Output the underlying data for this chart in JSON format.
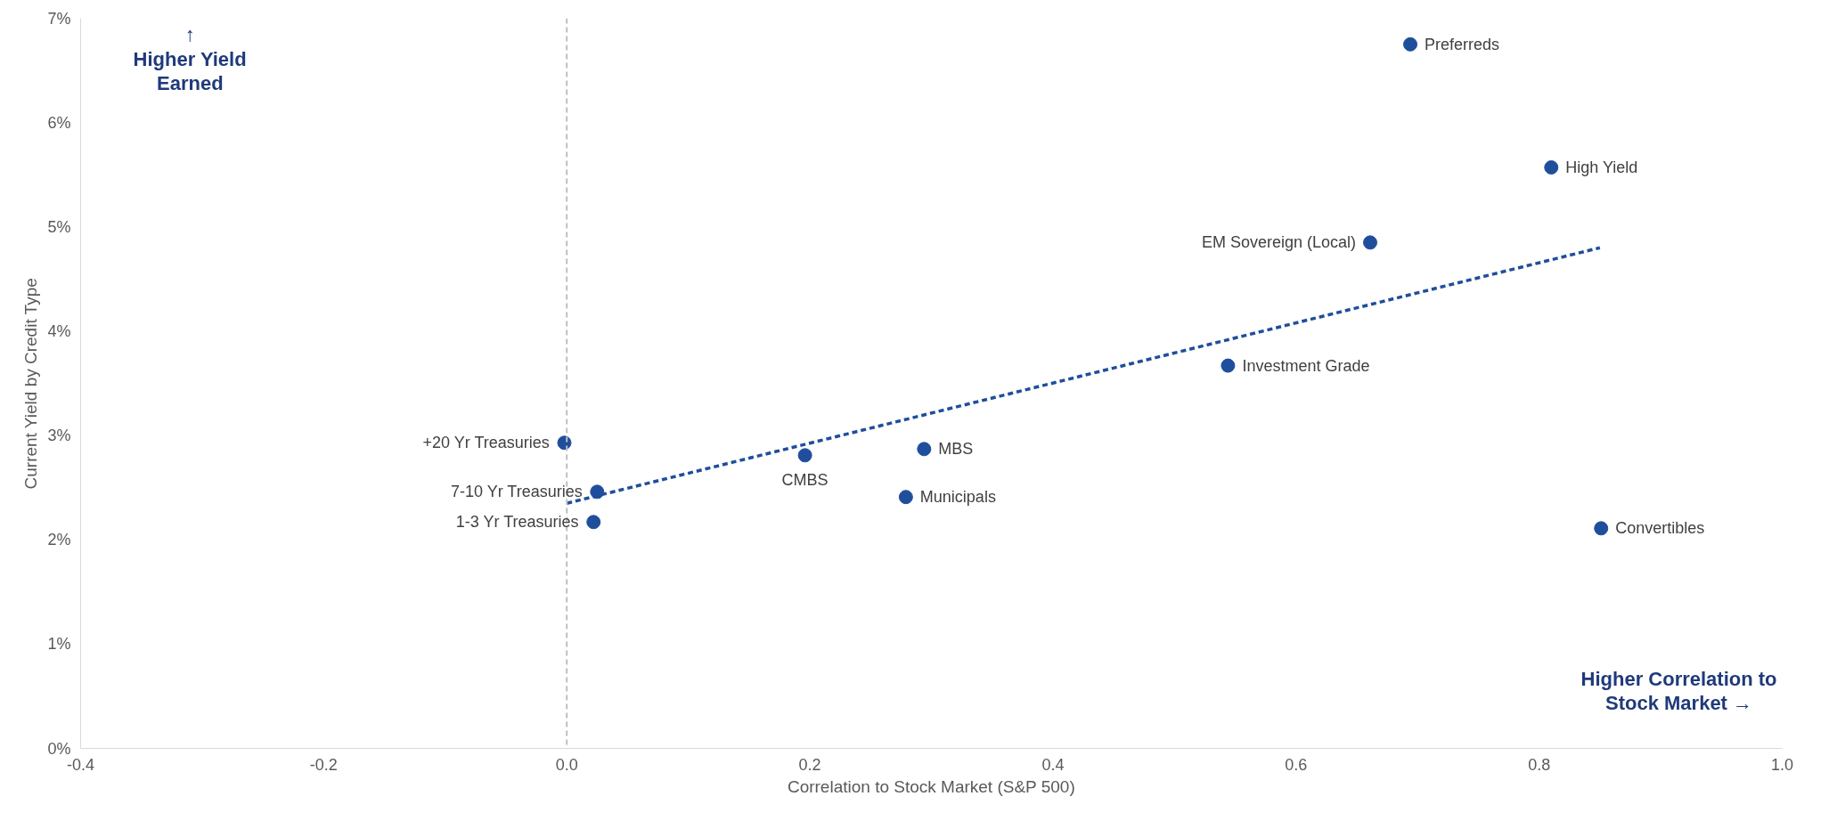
{
  "chart_data": {
    "type": "scatter",
    "xlabel": "Correlation to Stock Market (S&P 500)",
    "ylabel": "Current Yield by Credit Type",
    "xlim": [
      -0.4,
      1.0
    ],
    "ylim": [
      0,
      7
    ],
    "xticks": [
      {
        "value": -0.4,
        "label": "-0.4"
      },
      {
        "value": -0.2,
        "label": "-0.2"
      },
      {
        "value": 0,
        "label": "0.0"
      },
      {
        "value": 0.2,
        "label": "0.2"
      },
      {
        "value": 0.4,
        "label": "0.4"
      },
      {
        "value": 0.6,
        "label": "0.6"
      },
      {
        "value": 0.8,
        "label": "0.8"
      },
      {
        "value": 1.0,
        "label": "1.0"
      }
    ],
    "yticks": [
      {
        "value": 0,
        "label": "0%"
      },
      {
        "value": 1,
        "label": "1%"
      },
      {
        "value": 2,
        "label": "2%"
      },
      {
        "value": 3,
        "label": "3%"
      },
      {
        "value": 4,
        "label": "4%"
      },
      {
        "value": 5,
        "label": "5%"
      },
      {
        "value": 6,
        "label": "6%"
      },
      {
        "value": 7,
        "label": "7%"
      }
    ],
    "grid": false,
    "series": [
      {
        "marker": "circle",
        "color": "#1f4e9c",
        "x": [
          0.694,
          0.81,
          0.661,
          0.544,
          -0.002,
          0.025,
          0.022,
          0.196,
          0.294,
          0.279,
          0.851
        ],
        "values": [
          6.75,
          5.57,
          4.85,
          3.67,
          2.93,
          2.46,
          2.17,
          2.81,
          2.87,
          2.41,
          2.11
        ]
      },
      {
        "type": "line",
        "color": "#1f4e9c",
        "line_style": "dashed",
        "x": [
          0,
          0.85
        ],
        "values": [
          2.35,
          4.8
        ]
      }
    ],
    "ref_lines": [
      {
        "axis": "x",
        "value": 0,
        "color": "#bfbfbf",
        "line_style": "dashed"
      }
    ],
    "annotations": [
      {
        "text": "Preferreds",
        "x": 0.694,
        "y": 6.75
      },
      {
        "text": "High Yield",
        "x": 0.81,
        "y": 5.57
      },
      {
        "text": "EM Sovereign (Local)",
        "x": 0.661,
        "y": 4.85
      },
      {
        "text": "Investment Grade",
        "x": 0.544,
        "y": 3.67
      },
      {
        "text": "+20 Yr Treasuries",
        "x": -0.002,
        "y": 2.93
      },
      {
        "text": "7-10 Yr Treasuries",
        "x": 0.025,
        "y": 2.46
      },
      {
        "text": "1-3 Yr Treasuries",
        "x": 0.022,
        "y": 2.17
      },
      {
        "text": "CMBS",
        "x": 0.196,
        "y": 2.81
      },
      {
        "text": "MBS",
        "x": 0.294,
        "y": 2.87
      },
      {
        "text": "Municipals",
        "x": 0.279,
        "y": 2.41
      },
      {
        "text": "Convertibles",
        "x": 0.851,
        "y": 2.11
      },
      "↑\nHigher Yield\nEarned",
      "Higher Correlation to\nStock Market →"
    ]
  }
}
